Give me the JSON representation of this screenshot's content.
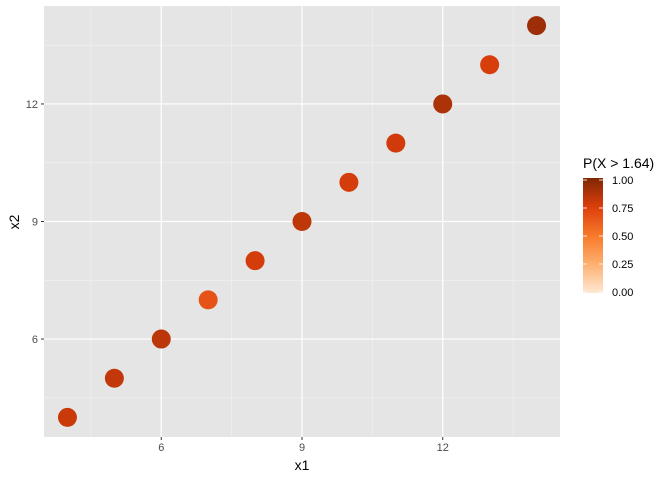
{
  "chart_data": {
    "type": "scatter",
    "title": "",
    "xlabel": "x1",
    "ylabel": "x2",
    "xlim": [
      3.5,
      14.5
    ],
    "ylim": [
      3.5,
      14.5
    ],
    "x_ticks": [
      6,
      9,
      12
    ],
    "y_ticks": [
      6,
      9,
      12
    ],
    "grid": true,
    "points": [
      {
        "x": 4,
        "y": 4,
        "p": 0.8
      },
      {
        "x": 5,
        "y": 5,
        "p": 0.82
      },
      {
        "x": 6,
        "y": 6,
        "p": 0.84
      },
      {
        "x": 7,
        "y": 7,
        "p": 0.66
      },
      {
        "x": 8,
        "y": 8,
        "p": 0.77
      },
      {
        "x": 9,
        "y": 9,
        "p": 0.83
      },
      {
        "x": 10,
        "y": 10,
        "p": 0.77
      },
      {
        "x": 11,
        "y": 11,
        "p": 0.78
      },
      {
        "x": 12,
        "y": 12,
        "p": 0.88
      },
      {
        "x": 13,
        "y": 13,
        "p": 0.76
      },
      {
        "x": 14,
        "y": 14,
        "p": 0.92
      }
    ],
    "legend": {
      "title": "P(X > 1.64)",
      "position": "right",
      "range": [
        0,
        1
      ],
      "ticks": [
        "0.00",
        "0.25",
        "0.50",
        "0.75",
        "1.00"
      ],
      "colors": [
        "#fee8d4",
        "#fdb070",
        "#f8792a",
        "#dc3e0c",
        "#7f2704"
      ]
    }
  }
}
